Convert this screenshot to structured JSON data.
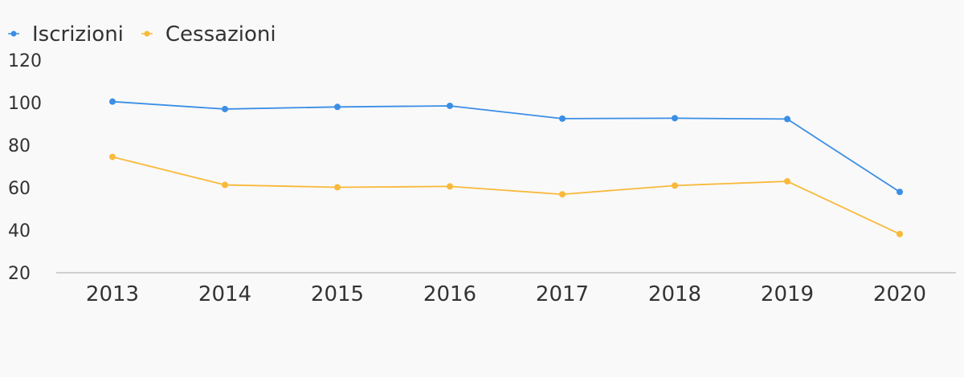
{
  "chart_data": {
    "type": "line",
    "title": "",
    "xlabel": "",
    "ylabel": "",
    "categories": [
      "2013",
      "2014",
      "2015",
      "2016",
      "2017",
      "2018",
      "2019",
      "2020"
    ],
    "series": [
      {
        "name": "Iscrizioni",
        "color": "#3a8ee6",
        "values": [
          100.5,
          97,
          98,
          98.5,
          92.5,
          92.7,
          92.3,
          58
        ]
      },
      {
        "name": "Cessazioni",
        "color": "#f9b93a",
        "values": [
          74.5,
          61.3,
          60.2,
          60.6,
          56.9,
          61,
          63,
          38.2
        ]
      }
    ],
    "ylim": [
      20,
      120
    ],
    "yticks": [
      "20",
      "40",
      "60",
      "80",
      "100",
      "120"
    ],
    "grid": false,
    "legend_position": "top-left",
    "axis_color": "#d0d0d0",
    "text_color": "#333333"
  }
}
